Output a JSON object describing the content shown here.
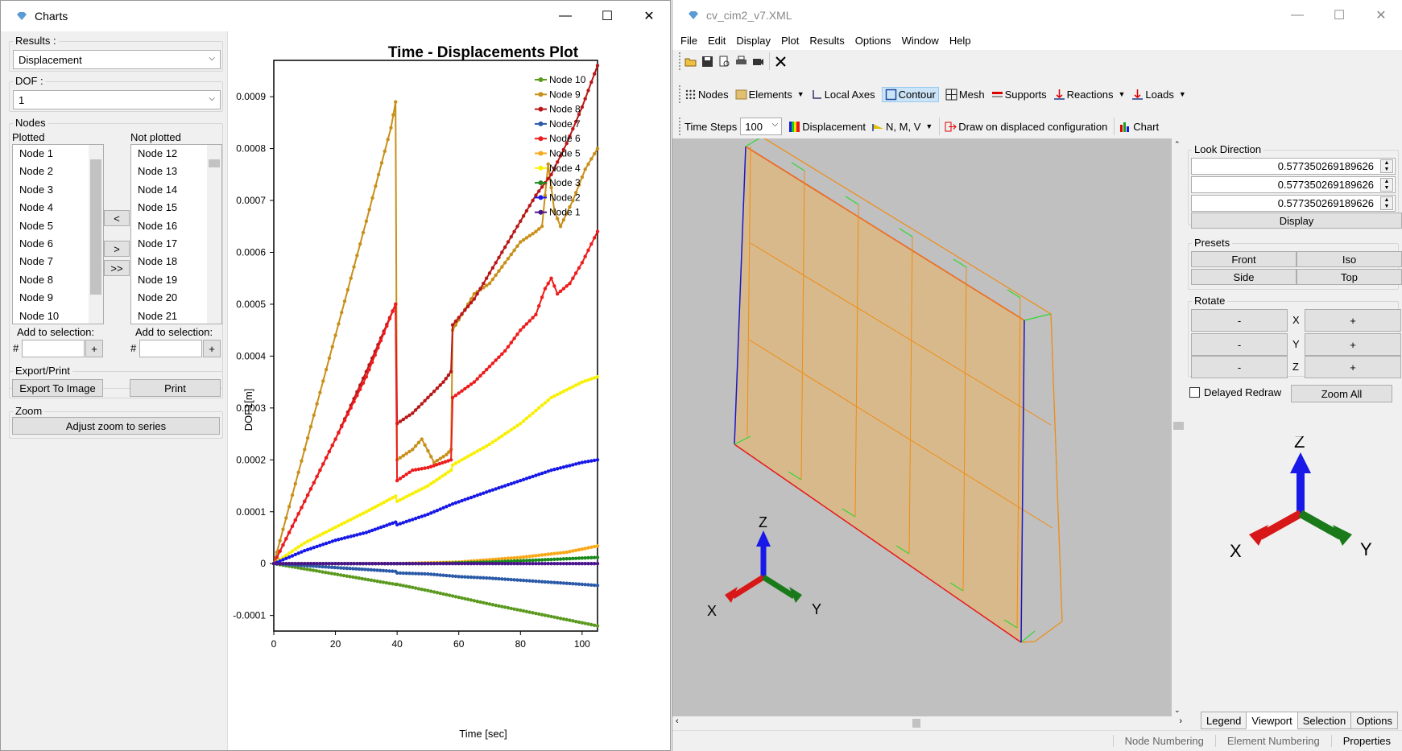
{
  "charts_window": {
    "title": "Charts",
    "controls": {
      "minimize": "—",
      "maximize": "☐",
      "close": "✕"
    },
    "results_label": "Results :",
    "results_value": "Displacement",
    "dof_label": "DOF :",
    "dof_value": "1",
    "nodes_label": "Nodes",
    "plotted_label": "Plotted",
    "not_plotted_label": "Not plotted",
    "plotted_items": [
      "Node 1",
      "Node 2",
      "Node 3",
      "Node 4",
      "Node 5",
      "Node 6",
      "Node 7",
      "Node 8",
      "Node 9",
      "Node 10"
    ],
    "not_plotted_items": [
      "Node 12",
      "Node 13",
      "Node 14",
      "Node 15",
      "Node 16",
      "Node 17",
      "Node 18",
      "Node 19",
      "Node 20",
      "Node 21"
    ],
    "move_left": "<",
    "move_right": ">",
    "move_all_right": ">>",
    "add_to_selection_label": "Add to selection:",
    "hash": "#",
    "plus": "+",
    "export_print_label": "Export/Print",
    "export_button": "Export To Image",
    "print_button": "Print",
    "zoom_label": "Zoom",
    "zoom_button": "Adjust zoom to series"
  },
  "chart_data": {
    "type": "line",
    "title": "Time - Displacements Plot",
    "xlabel": "Time [sec]",
    "ylabel": "DOF1[m]",
    "xlim": [
      0,
      105
    ],
    "ylim": [
      -0.00013,
      0.00097
    ],
    "xticks": [
      0,
      20,
      40,
      60,
      80,
      100
    ],
    "yticks": [
      -0.0001,
      0,
      0.0001,
      0.0002,
      0.0003,
      0.0004,
      0.0005,
      0.0006,
      0.0007,
      0.0008,
      0.0009
    ],
    "ytick_labels": [
      "-0.0001",
      "0",
      "0.0001",
      "0.0002",
      "0.0003",
      "0.0004",
      "0.0005",
      "0.0006",
      "0.0007",
      "0.0008",
      "0.0009"
    ],
    "legend_position": "top-right",
    "series": [
      {
        "name": "Node 10",
        "color": "#5b9a1f",
        "points": [
          [
            0,
            0
          ],
          [
            39.5,
            -4e-05
          ],
          [
            40,
            -4e-05
          ],
          [
            50,
            -5.2e-05
          ],
          [
            60,
            -6.5e-05
          ],
          [
            70,
            -7.8e-05
          ],
          [
            80,
            -9e-05
          ],
          [
            90,
            -0.000102
          ],
          [
            100,
            -0.000114
          ],
          [
            105,
            -0.00012
          ]
        ]
      },
      {
        "name": "Node 9",
        "color": "#c8901a",
        "points": [
          [
            0,
            0
          ],
          [
            10,
            0.00022
          ],
          [
            20,
            0.00044
          ],
          [
            30,
            0.00066
          ],
          [
            38,
            0.00084
          ],
          [
            39.5,
            0.00089
          ],
          [
            40,
            0.0002
          ],
          [
            45,
            0.00022
          ],
          [
            48,
            0.00024
          ],
          [
            52,
            0.000195
          ],
          [
            56,
            0.00021
          ],
          [
            57.5,
            0.00022
          ],
          [
            58,
            0.00045
          ],
          [
            65,
            0.00052
          ],
          [
            70,
            0.00054
          ],
          [
            75,
            0.00058
          ],
          [
            80,
            0.00062
          ],
          [
            85,
            0.00064
          ],
          [
            87,
            0.00065
          ],
          [
            89,
            0.00077
          ],
          [
            91,
            0.00068
          ],
          [
            93,
            0.00065
          ],
          [
            97,
            0.0007
          ],
          [
            101,
            0.00076
          ],
          [
            105,
            0.0008
          ]
        ]
      },
      {
        "name": "Node 8",
        "color": "#b81818",
        "points": [
          [
            0,
            0
          ],
          [
            10,
            0.00012
          ],
          [
            20,
            0.00024
          ],
          [
            30,
            0.00037
          ],
          [
            39.5,
            0.0005
          ],
          [
            40,
            0.00027
          ],
          [
            45,
            0.00029
          ],
          [
            50,
            0.00032
          ],
          [
            55,
            0.00035
          ],
          [
            57.5,
            0.00037
          ],
          [
            58,
            0.00046
          ],
          [
            65,
            0.00051
          ],
          [
            70,
            0.00056
          ],
          [
            75,
            0.00061
          ],
          [
            80,
            0.00066
          ],
          [
            85,
            0.00071
          ],
          [
            90,
            0.00075
          ],
          [
            95,
            0.00081
          ],
          [
            100,
            0.00088
          ],
          [
            105,
            0.00096
          ]
        ]
      },
      {
        "name": "Node 7",
        "color": "#2a5aa8",
        "points": [
          [
            0,
            0
          ],
          [
            39.5,
            -1.5e-05
          ],
          [
            40,
            -1.8e-05
          ],
          [
            50,
            -2e-05
          ],
          [
            60,
            -2.5e-05
          ],
          [
            70,
            -2.8e-05
          ],
          [
            80,
            -3.2e-05
          ],
          [
            90,
            -3.6e-05
          ],
          [
            100,
            -4e-05
          ],
          [
            105,
            -4.2e-05
          ]
        ]
      },
      {
        "name": "Node 6",
        "color": "#ee1c1c",
        "points": [
          [
            0,
            0
          ],
          [
            10,
            0.00012
          ],
          [
            20,
            0.00024
          ],
          [
            30,
            0.00036
          ],
          [
            39.5,
            0.0005
          ],
          [
            40,
            0.00016
          ],
          [
            45,
            0.00018
          ],
          [
            50,
            0.000185
          ],
          [
            57.5,
            0.0002
          ],
          [
            58,
            0.00032
          ],
          [
            65,
            0.00035
          ],
          [
            70,
            0.00038
          ],
          [
            75,
            0.00041
          ],
          [
            80,
            0.00045
          ],
          [
            85,
            0.00048
          ],
          [
            88,
            0.00053
          ],
          [
            90,
            0.00055
          ],
          [
            92,
            0.00052
          ],
          [
            96,
            0.00054
          ],
          [
            100,
            0.00058
          ],
          [
            105,
            0.00064
          ]
        ]
      },
      {
        "name": "Node 5",
        "color": "#f8a818",
        "points": [
          [
            0,
            0
          ],
          [
            40,
            0
          ],
          [
            60,
            3e-06
          ],
          [
            80,
            1.2e-05
          ],
          [
            95,
            2.2e-05
          ],
          [
            105,
            3.4e-05
          ]
        ]
      },
      {
        "name": "Node 4",
        "color": "#f8f000",
        "points": [
          [
            0,
            0
          ],
          [
            10,
            4e-05
          ],
          [
            20,
            7e-05
          ],
          [
            30,
            0.0001
          ],
          [
            39.5,
            0.00013
          ],
          [
            40,
            0.00012
          ],
          [
            50,
            0.00015
          ],
          [
            57.5,
            0.00018
          ],
          [
            58,
            0.00019
          ],
          [
            70,
            0.00023
          ],
          [
            80,
            0.00027
          ],
          [
            90,
            0.00032
          ],
          [
            100,
            0.00035
          ],
          [
            105,
            0.00036
          ]
        ]
      },
      {
        "name": "Node 3",
        "color": "#1a8a1a",
        "points": [
          [
            0,
            0
          ],
          [
            50,
            0
          ],
          [
            70,
            3e-06
          ],
          [
            90,
            8e-06
          ],
          [
            105,
            1.2e-05
          ]
        ]
      },
      {
        "name": "Node 2",
        "color": "#1818e8",
        "points": [
          [
            0,
            0
          ],
          [
            10,
            2.5e-05
          ],
          [
            20,
            4.5e-05
          ],
          [
            30,
            6e-05
          ],
          [
            39.5,
            8e-05
          ],
          [
            40,
            7.5e-05
          ],
          [
            50,
            9.5e-05
          ],
          [
            58,
            0.000115
          ],
          [
            70,
            0.00014
          ],
          [
            80,
            0.00016
          ],
          [
            90,
            0.00018
          ],
          [
            100,
            0.000195
          ],
          [
            105,
            0.0002
          ]
        ]
      },
      {
        "name": "Node 1",
        "color": "#4a148c",
        "points": [
          [
            0,
            0
          ],
          [
            105,
            0
          ]
        ]
      }
    ]
  },
  "main_window": {
    "title": "cv_cim2_v7.XML",
    "controls": {
      "minimize": "—",
      "maximize": "☐",
      "close": "✕"
    },
    "menu": [
      "File",
      "Edit",
      "Display",
      "Plot",
      "Results",
      "Options",
      "Window",
      "Help"
    ],
    "toolbar2": {
      "nodes": "Nodes",
      "elements": "Elements",
      "local_axes": "Local Axes",
      "contour": "Contour",
      "mesh": "Mesh",
      "supports": "Supports",
      "reactions": "Reactions",
      "loads": "Loads"
    },
    "toolbar3": {
      "time_steps": "Time Steps",
      "time_steps_value": "100",
      "displacement": "Displacement",
      "nmv": "N, M, V",
      "draw_displaced": "Draw on displaced configuration",
      "chart": "Chart"
    },
    "look_direction_label": "Look Direction",
    "look_direction": [
      "0.577350269189626",
      "0.577350269189626",
      "0.577350269189626"
    ],
    "display_button": "Display",
    "presets_label": "Presets",
    "presets": [
      "Front",
      "Iso",
      "Side",
      "Top"
    ],
    "rotate_label": "Rotate",
    "rotate_axes": [
      "X",
      "Y",
      "Z"
    ],
    "minus": "-",
    "plus": "+",
    "delayed_redraw": "Delayed Redraw",
    "zoom_all": "Zoom All",
    "axis_labels": {
      "x": "X",
      "y": "Y",
      "z": "Z"
    },
    "bottom_tabs": [
      "Legend",
      "Viewport",
      "Selection",
      "Options"
    ],
    "status": [
      "Node Numbering",
      "Element Numbering",
      "Properties"
    ]
  }
}
